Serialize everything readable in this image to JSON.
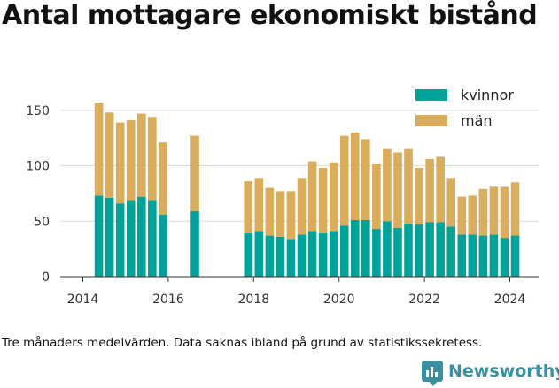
{
  "title": "Antal mottagare ekonomiskt bistånd",
  "note": "Tre månaders medelvärden. Data saknas ibland på grund av statistikssekretess.",
  "brand": {
    "name": "Newsworthy",
    "icon": "newsworthy-logo-icon",
    "color": "#3a8fa0"
  },
  "chart_data": {
    "type": "bar",
    "stacked": true,
    "ylim": [
      0,
      170
    ],
    "yticks": [
      0,
      50,
      100,
      150
    ],
    "xlim": [
      2013.5,
      2024.5
    ],
    "xticks": [
      2014,
      2016,
      2018,
      2020,
      2022,
      2024
    ],
    "grid": true,
    "legend_position": "top-right",
    "x": [
      2014.375,
      2014.625,
      2014.875,
      2015.125,
      2015.375,
      2015.625,
      2015.875,
      2016.625,
      2017.875,
      2018.125,
      2018.375,
      2018.625,
      2018.875,
      2019.125,
      2019.375,
      2019.625,
      2019.875,
      2020.125,
      2020.375,
      2020.625,
      2020.875,
      2021.125,
      2021.375,
      2021.625,
      2021.875,
      2022.125,
      2022.375,
      2022.625,
      2022.875,
      2023.125,
      2023.375,
      2023.625,
      2023.875,
      2024.125
    ],
    "series": [
      {
        "name": "kvinnor",
        "color": "#00a39a",
        "values": [
          73,
          71,
          66,
          69,
          72,
          69,
          56,
          59,
          39,
          41,
          37,
          36,
          34,
          38,
          41,
          39,
          41,
          46,
          51,
          51,
          43,
          50,
          44,
          48,
          47,
          49,
          49,
          45,
          38,
          38,
          37,
          38,
          35,
          37
        ]
      },
      {
        "name": "män",
        "color": "#d9ad5b",
        "values": [
          84,
          77,
          73,
          72,
          75,
          75,
          65,
          68,
          47,
          48,
          43,
          41,
          43,
          51,
          63,
          59,
          62,
          81,
          79,
          73,
          59,
          65,
          68,
          67,
          51,
          57,
          59,
          44,
          34,
          35,
          42,
          43,
          46,
          48
        ]
      }
    ]
  }
}
